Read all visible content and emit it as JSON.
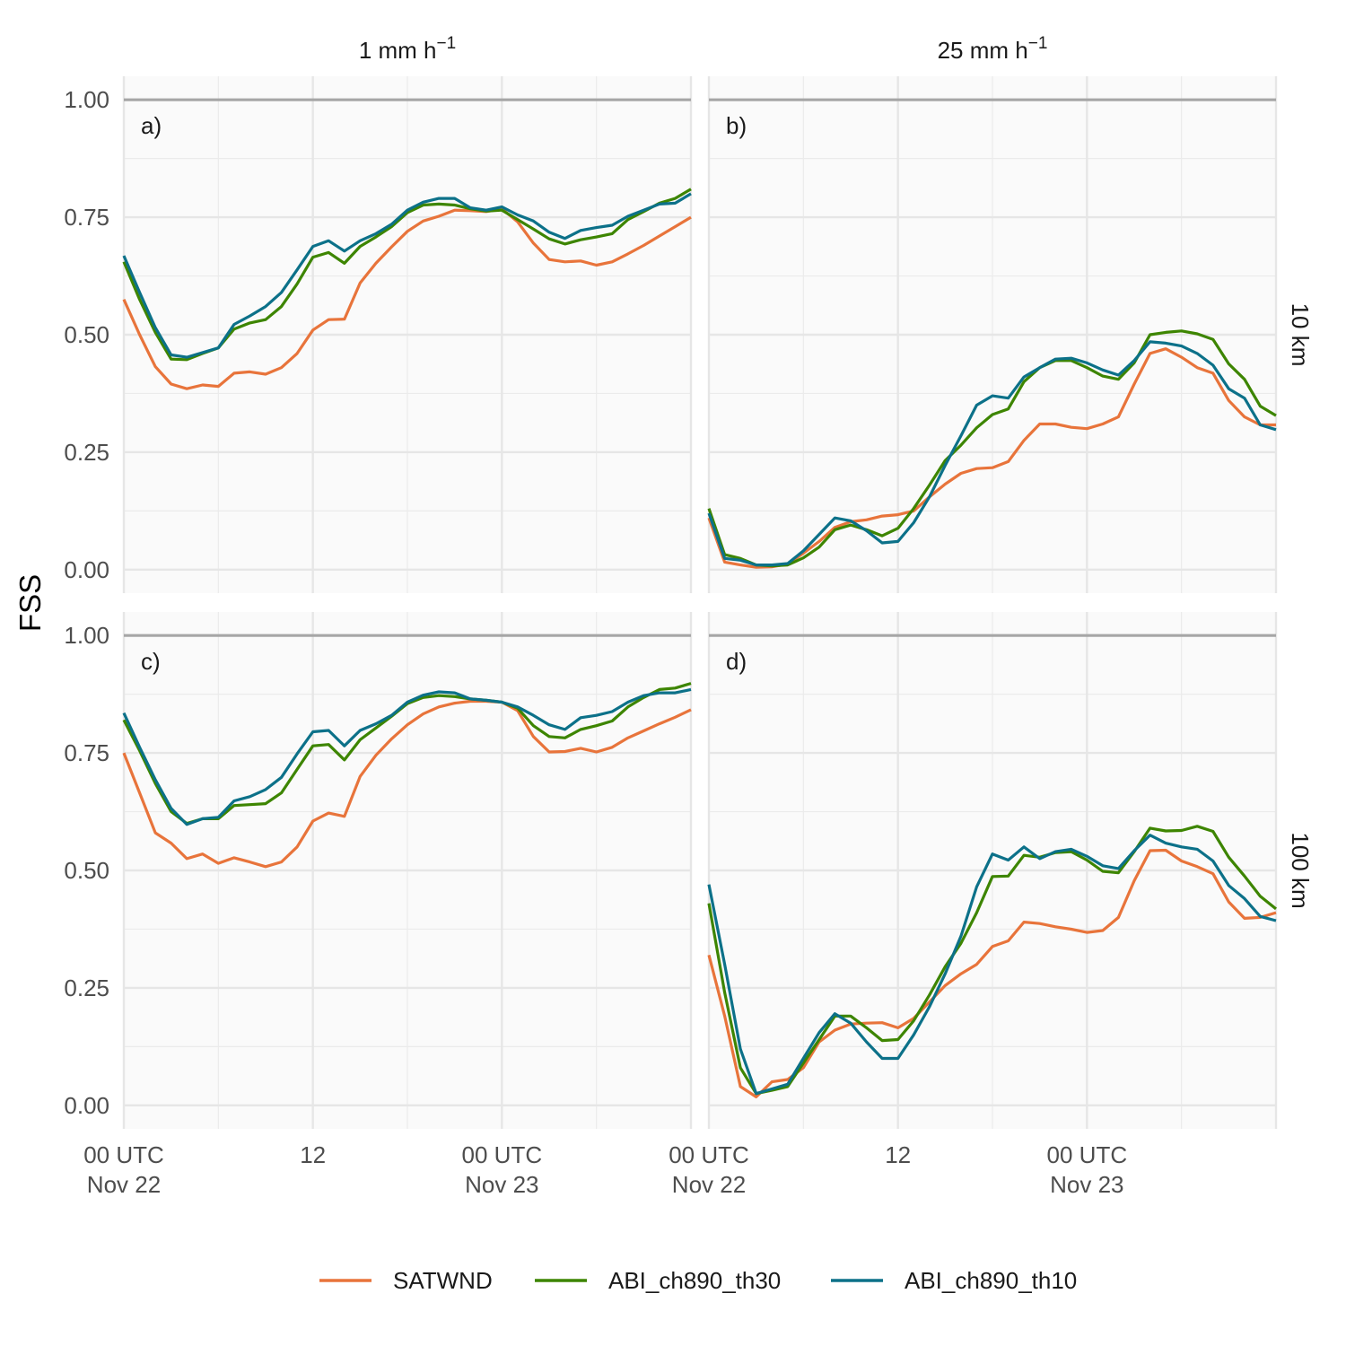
{
  "chart_data": {
    "type": "line",
    "ylabel": "FSS",
    "ylim": [
      -0.05,
      1.05
    ],
    "yticks": [
      0,
      0.25,
      0.5,
      0.75,
      1.0
    ],
    "ytick_labels": [
      "0.00",
      "0.25",
      "0.50",
      "0.75",
      "1.00"
    ],
    "reference_line": 1.0,
    "x_hours_since_start": [
      0,
      1,
      2,
      3,
      4,
      5,
      6,
      7,
      8,
      9,
      10,
      11,
      12,
      13,
      14,
      15,
      16,
      17,
      18,
      19,
      20,
      21,
      22,
      23,
      24,
      25,
      26,
      27,
      28,
      29,
      30,
      31,
      32,
      33,
      34,
      35,
      36
    ],
    "xlim": [
      0,
      36
    ],
    "xticks": [
      {
        "x": 0,
        "line1": "00 UTC",
        "line2": "Nov 22"
      },
      {
        "x": 12,
        "line1": "12",
        "line2": ""
      },
      {
        "x": 24,
        "line1": "00 UTC",
        "line2": "Nov 23"
      }
    ],
    "col_strips": [
      {
        "text": "1 mm h",
        "sup": "−1"
      },
      {
        "text": "25 mm h",
        "sup": "−1"
      }
    ],
    "row_strips": [
      "10 km",
      "100 km"
    ],
    "legend": {
      "position": "bottom",
      "entries": [
        {
          "name": "SATWND",
          "color": "#E8743B"
        },
        {
          "name": "ABI_ch890_th30",
          "color": "#3D8500"
        },
        {
          "name": "ABI_ch890_th10",
          "color": "#0C7189"
        }
      ]
    },
    "panels": [
      {
        "label": "a)",
        "row": 0,
        "col": 0,
        "series": [
          {
            "name": "SATWND",
            "values": [
              0.575,
              0.5,
              0.432,
              0.395,
              0.385,
              0.393,
              0.39,
              0.418,
              0.421,
              0.416,
              0.43,
              0.46,
              0.51,
              0.532,
              0.533,
              0.61,
              0.652,
              0.687,
              0.72,
              0.742,
              0.752,
              0.765,
              0.764,
              0.762,
              0.768,
              0.74,
              0.695,
              0.66,
              0.655,
              0.657,
              0.648,
              0.655,
              0.672,
              0.69,
              0.71,
              0.73,
              0.75
            ]
          },
          {
            "name": "ABI_ch890_th30",
            "values": [
              0.655,
              0.575,
              0.505,
              0.448,
              0.447,
              0.46,
              0.472,
              0.512,
              0.525,
              0.532,
              0.56,
              0.608,
              0.665,
              0.675,
              0.652,
              0.688,
              0.708,
              0.73,
              0.76,
              0.776,
              0.778,
              0.776,
              0.768,
              0.763,
              0.765,
              0.745,
              0.725,
              0.704,
              0.693,
              0.702,
              0.708,
              0.715,
              0.745,
              0.762,
              0.78,
              0.79,
              0.81
            ]
          },
          {
            "name": "ABI_ch890_th10",
            "values": [
              0.668,
              0.59,
              0.515,
              0.457,
              0.452,
              0.462,
              0.472,
              0.522,
              0.54,
              0.56,
              0.59,
              0.638,
              0.688,
              0.7,
              0.678,
              0.7,
              0.715,
              0.735,
              0.765,
              0.782,
              0.79,
              0.79,
              0.77,
              0.765,
              0.772,
              0.755,
              0.742,
              0.718,
              0.705,
              0.722,
              0.728,
              0.733,
              0.752,
              0.765,
              0.778,
              0.78,
              0.8
            ]
          }
        ]
      },
      {
        "label": "b)",
        "row": 0,
        "col": 1,
        "series": [
          {
            "name": "SATWND",
            "values": [
              0.11,
              0.016,
              0.01,
              0.005,
              0.006,
              0.012,
              0.035,
              0.06,
              0.09,
              0.102,
              0.106,
              0.114,
              0.117,
              0.125,
              0.155,
              0.182,
              0.205,
              0.215,
              0.217,
              0.23,
              0.275,
              0.31,
              0.31,
              0.303,
              0.3,
              0.31,
              0.325,
              0.395,
              0.46,
              0.47,
              0.452,
              0.43,
              0.418,
              0.36,
              0.325,
              0.308,
              0.308
            ]
          },
          {
            "name": "ABI_ch890_th30",
            "values": [
              0.13,
              0.032,
              0.024,
              0.01,
              0.008,
              0.01,
              0.025,
              0.048,
              0.085,
              0.095,
              0.085,
              0.072,
              0.088,
              0.13,
              0.18,
              0.232,
              0.265,
              0.302,
              0.33,
              0.342,
              0.4,
              0.43,
              0.445,
              0.445,
              0.43,
              0.412,
              0.405,
              0.44,
              0.5,
              0.505,
              0.508,
              0.502,
              0.49,
              0.438,
              0.405,
              0.348,
              0.328
            ]
          },
          {
            "name": "ABI_ch890_th10",
            "values": [
              0.12,
              0.024,
              0.02,
              0.01,
              0.01,
              0.013,
              0.04,
              0.075,
              0.11,
              0.104,
              0.083,
              0.057,
              0.06,
              0.1,
              0.155,
              0.222,
              0.285,
              0.35,
              0.37,
              0.365,
              0.41,
              0.43,
              0.448,
              0.45,
              0.44,
              0.425,
              0.414,
              0.445,
              0.485,
              0.482,
              0.476,
              0.46,
              0.435,
              0.385,
              0.365,
              0.308,
              0.298
            ]
          }
        ]
      },
      {
        "label": "c)",
        "row": 1,
        "col": 0,
        "series": [
          {
            "name": "SATWND",
            "values": [
              0.75,
              0.665,
              0.58,
              0.558,
              0.525,
              0.535,
              0.515,
              0.527,
              0.518,
              0.508,
              0.518,
              0.55,
              0.605,
              0.622,
              0.615,
              0.7,
              0.745,
              0.78,
              0.81,
              0.833,
              0.848,
              0.856,
              0.86,
              0.86,
              0.858,
              0.84,
              0.785,
              0.752,
              0.753,
              0.76,
              0.752,
              0.762,
              0.782,
              0.797,
              0.812,
              0.826,
              0.842
            ]
          },
          {
            "name": "ABI_ch890_th30",
            "values": [
              0.82,
              0.755,
              0.685,
              0.625,
              0.6,
              0.61,
              0.61,
              0.638,
              0.64,
              0.642,
              0.665,
              0.715,
              0.765,
              0.768,
              0.735,
              0.778,
              0.803,
              0.828,
              0.855,
              0.868,
              0.872,
              0.87,
              0.865,
              0.862,
              0.858,
              0.845,
              0.808,
              0.785,
              0.782,
              0.8,
              0.808,
              0.818,
              0.848,
              0.868,
              0.885,
              0.888,
              0.898
            ]
          },
          {
            "name": "ABI_ch890_th10",
            "values": [
              0.835,
              0.762,
              0.693,
              0.632,
              0.598,
              0.61,
              0.613,
              0.648,
              0.657,
              0.672,
              0.698,
              0.748,
              0.795,
              0.798,
              0.765,
              0.798,
              0.812,
              0.83,
              0.858,
              0.873,
              0.88,
              0.878,
              0.865,
              0.862,
              0.858,
              0.848,
              0.83,
              0.81,
              0.8,
              0.825,
              0.83,
              0.838,
              0.858,
              0.872,
              0.878,
              0.878,
              0.885
            ]
          }
        ]
      },
      {
        "label": "d)",
        "row": 1,
        "col": 1,
        "series": [
          {
            "name": "SATWND",
            "values": [
              0.32,
              0.19,
              0.04,
              0.018,
              0.05,
              0.055,
              0.08,
              0.135,
              0.16,
              0.173,
              0.175,
              0.176,
              0.165,
              0.185,
              0.22,
              0.255,
              0.28,
              0.3,
              0.338,
              0.35,
              0.39,
              0.387,
              0.38,
              0.375,
              0.368,
              0.372,
              0.4,
              0.478,
              0.542,
              0.543,
              0.52,
              0.508,
              0.493,
              0.433,
              0.398,
              0.4,
              0.41
            ]
          },
          {
            "name": "ABI_ch890_th30",
            "values": [
              0.43,
              0.24,
              0.08,
              0.025,
              0.032,
              0.04,
              0.09,
              0.14,
              0.19,
              0.19,
              0.165,
              0.138,
              0.14,
              0.18,
              0.235,
              0.295,
              0.345,
              0.41,
              0.487,
              0.488,
              0.532,
              0.528,
              0.538,
              0.54,
              0.522,
              0.498,
              0.495,
              0.54,
              0.59,
              0.584,
              0.585,
              0.594,
              0.583,
              0.528,
              0.488,
              0.445,
              0.418
            ]
          },
          {
            "name": "ABI_ch890_th10",
            "values": [
              0.47,
              0.3,
              0.12,
              0.025,
              0.035,
              0.045,
              0.1,
              0.155,
              0.195,
              0.175,
              0.135,
              0.1,
              0.1,
              0.15,
              0.21,
              0.28,
              0.36,
              0.465,
              0.535,
              0.522,
              0.55,
              0.525,
              0.54,
              0.545,
              0.53,
              0.51,
              0.504,
              0.542,
              0.575,
              0.558,
              0.55,
              0.545,
              0.52,
              0.468,
              0.44,
              0.402,
              0.393
            ]
          }
        ]
      }
    ]
  }
}
